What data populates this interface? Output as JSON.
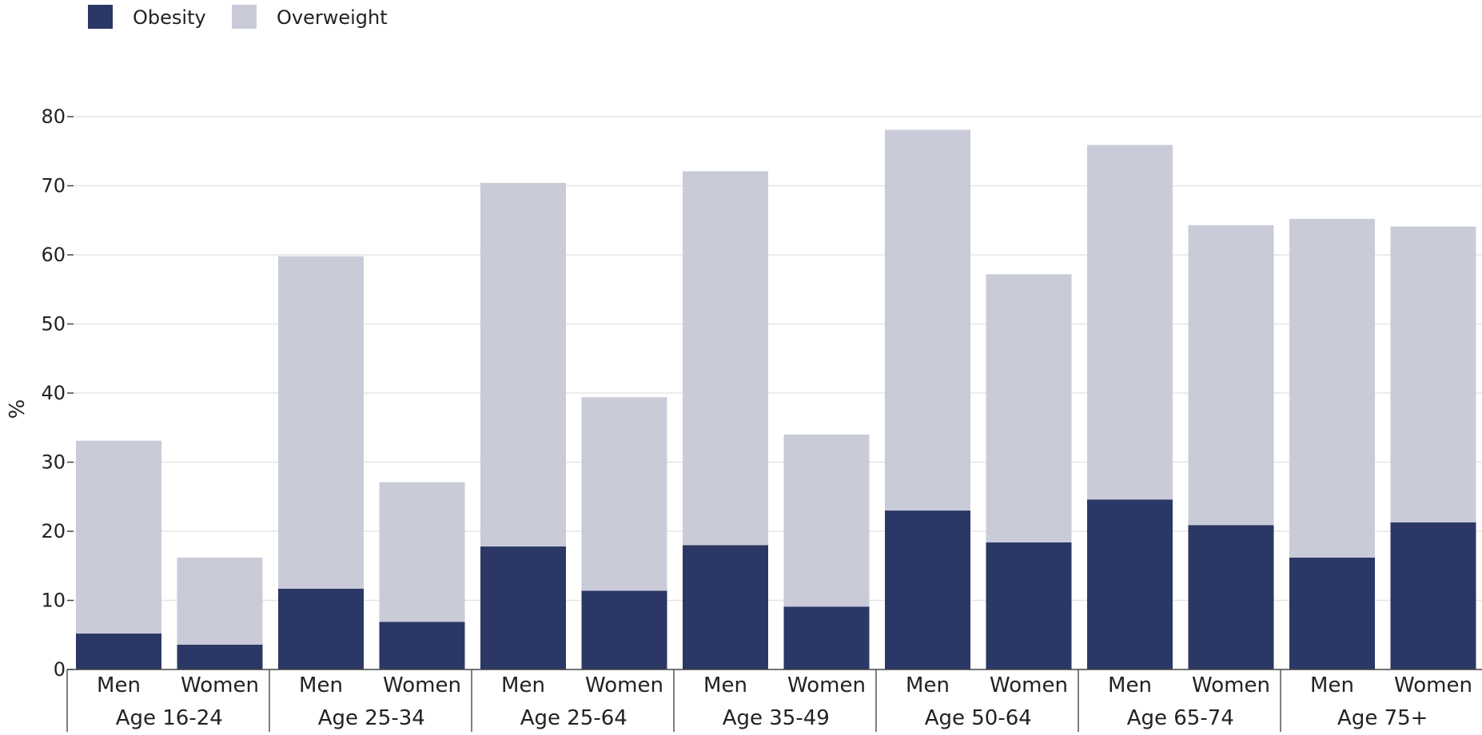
{
  "chart_data": {
    "type": "bar",
    "stacked": true,
    "ylabel": "%",
    "ylim": [
      0,
      80
    ],
    "yticks": [
      0,
      10,
      20,
      30,
      40,
      50,
      60,
      70,
      80
    ],
    "grid": true,
    "legend_position": "top-left",
    "groups": [
      "Age 16-24",
      "Age 25-34",
      "Age 25-64",
      "Age 35-49",
      "Age 50-64",
      "Age 65-74",
      "Age 75+"
    ],
    "sub_categories": [
      "Men",
      "Women"
    ],
    "categories": [
      "Age 16-24 Men",
      "Age 16-24 Women",
      "Age 25-34 Men",
      "Age 25-34 Women",
      "Age 25-64 Men",
      "Age 25-64 Women",
      "Age 35-49 Men",
      "Age 35-49 Women",
      "Age 50-64 Men",
      "Age 50-64 Women",
      "Age 65-74 Men",
      "Age 65-74 Women",
      "Age 75+ Men",
      "Age 75+ Women"
    ],
    "series": [
      {
        "name": "Obesity",
        "color": "#2b3865",
        "values": [
          5.2,
          3.6,
          11.7,
          6.9,
          17.8,
          11.4,
          18.0,
          9.1,
          23.0,
          18.4,
          24.6,
          20.9,
          16.2,
          21.3
        ]
      },
      {
        "name": "Overweight",
        "color": "#cacbd8",
        "values": [
          27.9,
          12.6,
          48.1,
          20.2,
          52.6,
          28.0,
          54.1,
          24.9,
          55.1,
          38.8,
          51.3,
          43.4,
          49.0,
          42.8
        ]
      }
    ]
  }
}
